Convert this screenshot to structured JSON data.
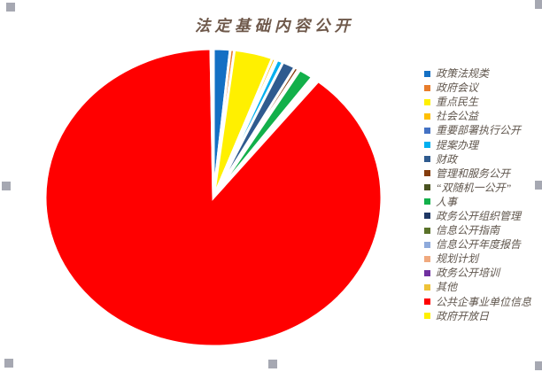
{
  "chart_data": {
    "type": "pie",
    "title": "法定基础内容公开",
    "legend_position": "right",
    "value_unit": "percent_of_total_estimated",
    "categories": [
      "政策法规类",
      "政府会议",
      "重点民生",
      "社会公益",
      "重要部署执行公开",
      "提案办理",
      "财政",
      "管理和服务公开",
      "“双随机一公开”",
      "人事",
      "政务公开组织管理",
      "信息公开指南",
      "信息公开年度报告",
      "规划计划",
      "政务公开培训",
      "其他",
      "公共企事业单位信息",
      "政府开放日"
    ],
    "values": [
      1.6,
      0.4,
      3.7,
      0.35,
      0.15,
      0.6,
      1.25,
      0.4,
      0.15,
      1.4,
      0.15,
      0.1,
      0.1,
      0.1,
      0.1,
      0.15,
      89.05,
      0.25
    ],
    "colors": [
      "#1470C4",
      "#E87D2C",
      "#FFF000",
      "#FFC000",
      "#4472C4",
      "#00B0F0",
      "#2F5B8F",
      "#843C0C",
      "#4A5321",
      "#12B04A",
      "#1F3864",
      "#5A7229",
      "#8EAADB",
      "#F0A97E",
      "#7030A0",
      "#EEC238",
      "#FF0000",
      "#FFF000"
    ],
    "slice_border_color": "#FFFFFF",
    "title_color": "#6E584A",
    "legend_text_color": "#60564D"
  },
  "editor": {
    "selection_handle_color": "#A6A8B2"
  }
}
